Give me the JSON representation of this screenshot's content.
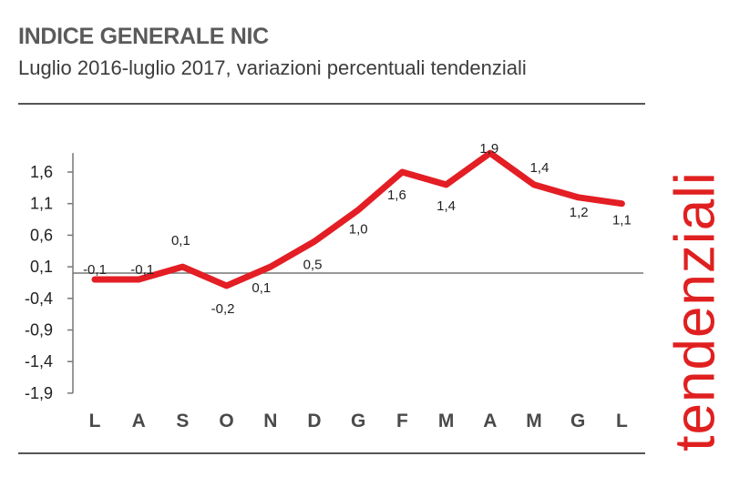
{
  "header": {
    "title": "INDICE GENERALE NIC",
    "subtitle": "Luglio 2016-luglio 2017, variazioni percentuali tendenziali"
  },
  "side_label": "tendenziali",
  "colors": {
    "series": "#e31e24",
    "side_label": "#e02020",
    "axis": "#777777",
    "rule": "#555555"
  },
  "chart_data": {
    "type": "line",
    "title": "INDICE GENERALE NIC",
    "subtitle": "Luglio 2016-luglio 2017, variazioni percentuali tendenziali",
    "xlabel": "",
    "ylabel": "",
    "categories": [
      "L",
      "A",
      "S",
      "O",
      "N",
      "D",
      "G",
      "F",
      "M",
      "A",
      "M",
      "G",
      "L"
    ],
    "series": [
      {
        "values": [
          -0.1,
          -0.1,
          0.1,
          -0.2,
          0.1,
          0.5,
          1.0,
          1.6,
          1.4,
          1.9,
          1.4,
          1.2,
          1.1
        ],
        "labels": [
          "-0,1",
          "-0,1",
          "0,1",
          "-0,2",
          "0,1",
          "0,5",
          "1,0",
          "1,6",
          "1,4",
          "1,9",
          "1,4",
          "1,2",
          "1,1"
        ]
      }
    ],
    "yticks": [
      1.6,
      1.1,
      0.6,
      0.1,
      -0.4,
      -0.9,
      -1.4,
      -1.9
    ],
    "ytick_labels": [
      "1,6",
      "1,1",
      "0,6",
      "0,1",
      "-0,4",
      "-0,9",
      "-1,4",
      "-1,9"
    ],
    "ylim": [
      -1.9,
      1.9
    ],
    "baseline": 0,
    "grid": false,
    "legend": "none"
  }
}
